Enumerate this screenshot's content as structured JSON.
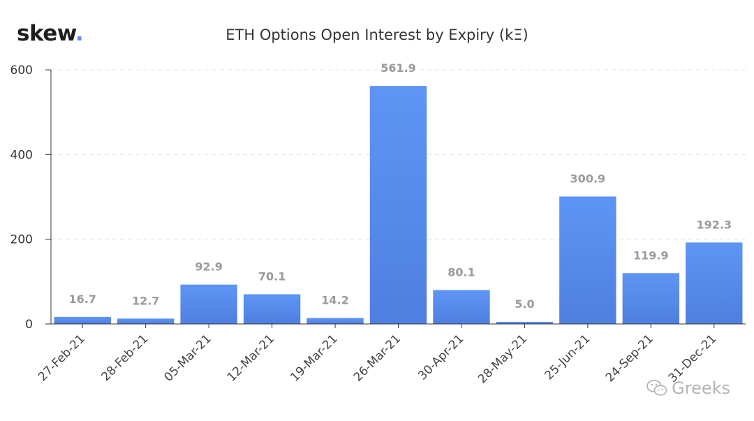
{
  "brand": {
    "logo_text": "skew",
    "logo_dot": "."
  },
  "watermark": {
    "text": "Greeks",
    "icon": "wechat-icon"
  },
  "chart_data": {
    "type": "bar",
    "title": "ETH Options Open Interest by Expiry (kΞ)",
    "xlabel": "",
    "ylabel": "",
    "categories": [
      "27-Feb-21",
      "28-Feb-21",
      "05-Mar-21",
      "12-Mar-21",
      "19-Mar-21",
      "26-Mar-21",
      "30-Apr-21",
      "28-May-21",
      "25-Jun-21",
      "24-Sep-21",
      "31-Dec-21"
    ],
    "values": [
      16.7,
      12.7,
      92.9,
      70.1,
      14.2,
      561.9,
      80.1,
      5.0,
      300.9,
      119.9,
      192.3
    ],
    "data_labels": [
      "16.7",
      "12.7",
      "92.9",
      "70.1",
      "14.2",
      "561.9",
      "80.1",
      "5.0",
      "300.9",
      "119.9",
      "192.3"
    ],
    "yticks": [
      0,
      200,
      400,
      600
    ],
    "ytick_labels": [
      "0",
      "200",
      "400",
      "600"
    ],
    "ylim": [
      0,
      600
    ],
    "grid": "horizontal-dashed",
    "legend": "none",
    "colors": {
      "bar_top": "#5e95f5",
      "bar_bottom": "#4f7fe0",
      "grid": "#e3e3e3",
      "axis": "#333333"
    }
  }
}
